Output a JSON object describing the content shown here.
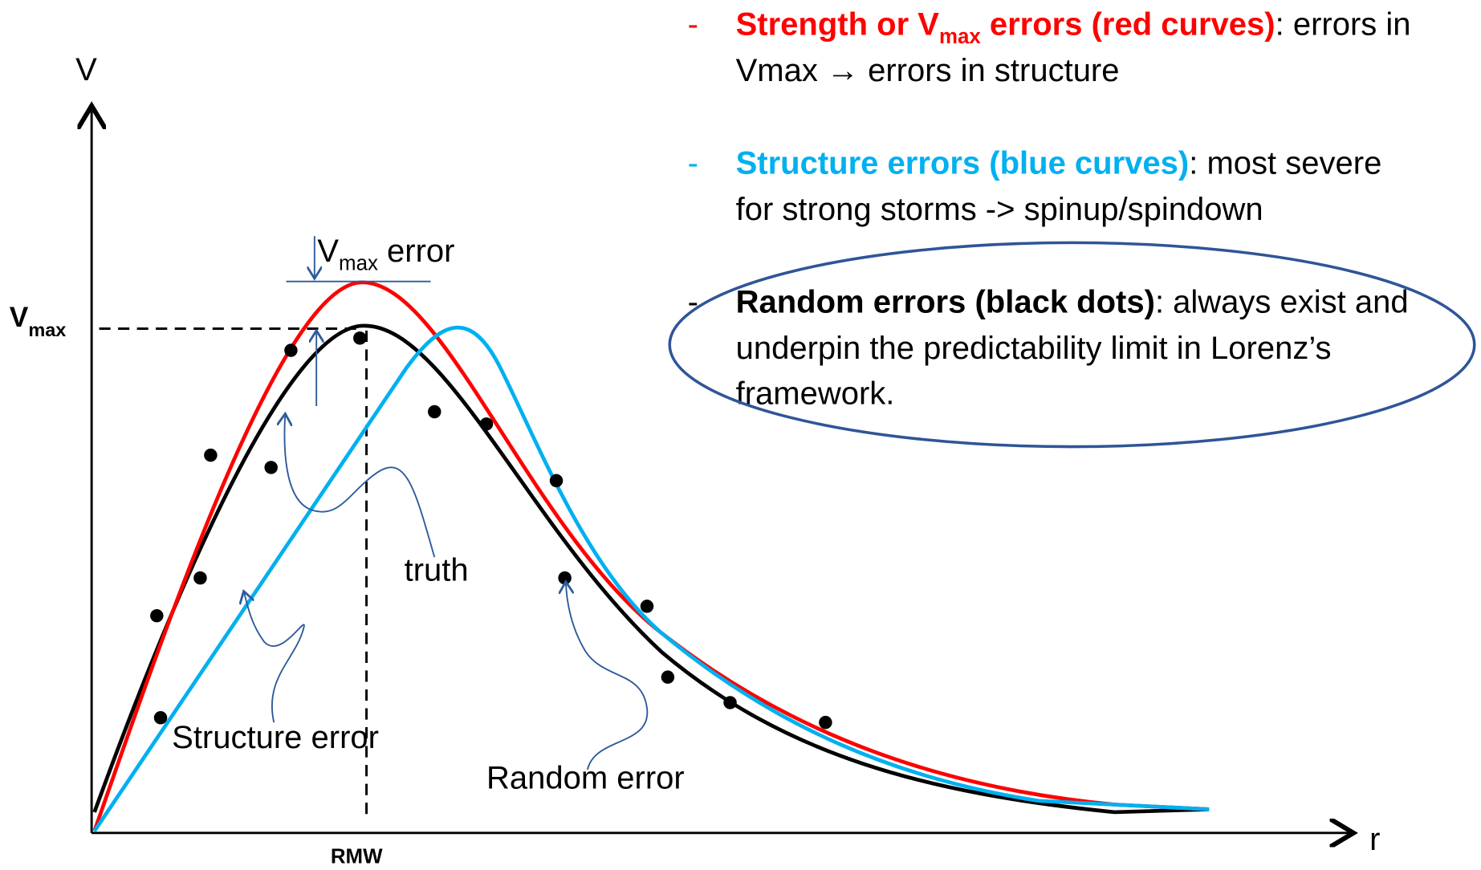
{
  "axes": {
    "y_label": "V",
    "x_label": "r",
    "vmax_label": {
      "base": "V",
      "sub": "max"
    },
    "rmw_label": "RMW"
  },
  "annotations": {
    "vmax_error": {
      "base": "V",
      "sub": "max",
      "rest": " error"
    },
    "truth": "truth",
    "structure_error": "Structure  error",
    "random_error": "Random error"
  },
  "bullets": [
    {
      "dash": "-",
      "title": "Strength or V",
      "title_sub": "max",
      "title_rest": " errors (red curves)",
      "line1": ": errors in",
      "line2": "Vmax → errors in structure"
    },
    {
      "dash": "-",
      "title": "Structure errors (blue curves)",
      "line1": ": most severe",
      "line2": "for strong storms -> spinup/spindown"
    },
    {
      "dash": "-",
      "title": "Random errors (black dots)",
      "line1": ": always exist and",
      "line2": "underpin the predictability limit in Lorenz’s",
      "line3": "framework."
    }
  ]
}
